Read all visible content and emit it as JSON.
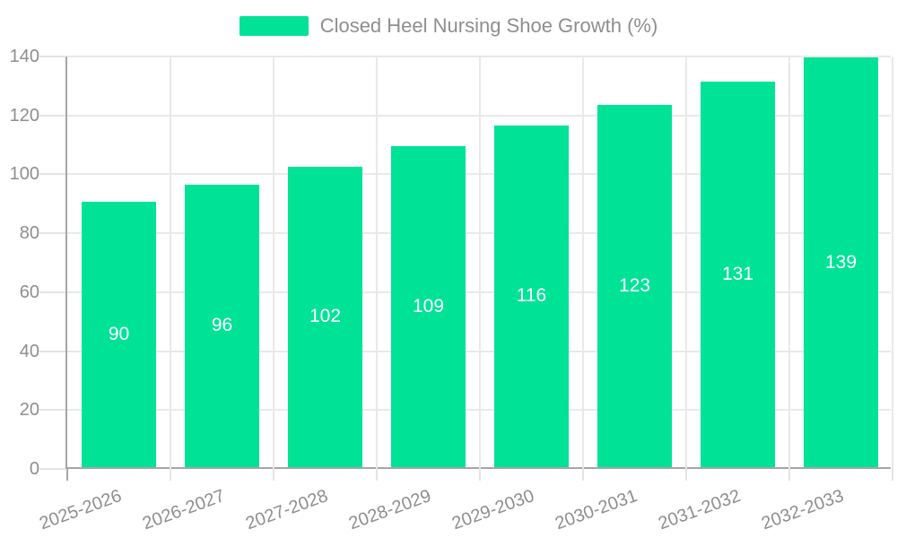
{
  "legend": {
    "label": "Closed Heel Nursing Shoe Growth (%)"
  },
  "chart_data": {
    "type": "bar",
    "title": "",
    "xlabel": "",
    "ylabel": "",
    "categories": [
      "2025-2026",
      "2026-2027",
      "2027-2028",
      "2028-2029",
      "2029-2030",
      "2030-2031",
      "2031-2032",
      "2032-2033"
    ],
    "series": [
      {
        "name": "Closed Heel Nursing Shoe Growth (%)",
        "values": [
          90,
          96,
          102,
          109,
          116,
          123,
          131,
          139
        ]
      }
    ],
    "bar_labels": [
      "90",
      "96",
      "102",
      "109",
      "116",
      "123",
      "131",
      "139"
    ],
    "ylim": [
      0,
      140
    ],
    "yticks": [
      0,
      20,
      40,
      60,
      80,
      100,
      120,
      140
    ],
    "grid": true,
    "legend_position": "top-center",
    "colors": {
      "bar": "#00E396",
      "bar_label": "#ffffff",
      "axis_text": "#8e8e8e",
      "gridline": "#e9e9e9",
      "axis_line": "#a6a6a6"
    }
  }
}
